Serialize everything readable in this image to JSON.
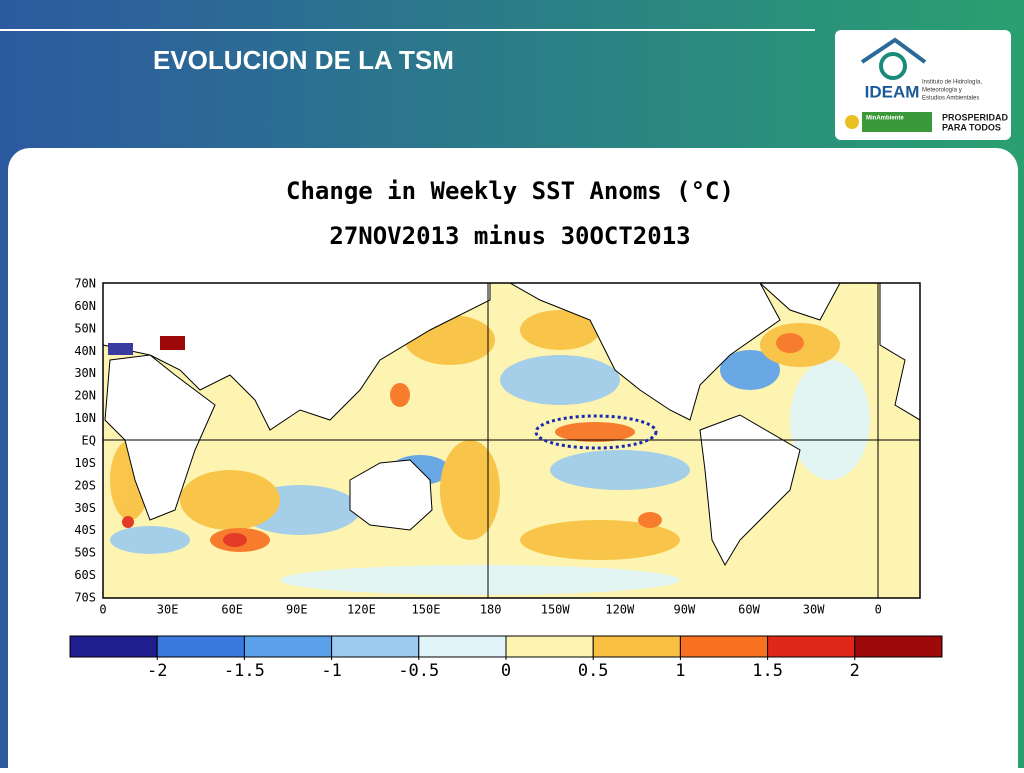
{
  "slide": {
    "title": "EVOLUCION DE LA TSM"
  },
  "logo": {
    "name": "IDEAM",
    "institute": [
      "Instituto de Hidrología,",
      "Meteorología y",
      "Estudios Ambientales"
    ],
    "ministry": "MinAmbiente",
    "slogan": [
      "PROSPERIDAD",
      "PARA TODOS"
    ]
  },
  "map": {
    "title": "Change in Weekly SST Anoms (°C)",
    "subtitle": "27NOV2013 minus 30OCT2013",
    "lat_labels": [
      "70N",
      "60N",
      "50N",
      "40N",
      "30N",
      "20N",
      "10N",
      "EQ",
      "10S",
      "20S",
      "30S",
      "40S",
      "50S",
      "60S",
      "70S"
    ],
    "lon_labels": [
      "0",
      "30E",
      "60E",
      "90E",
      "120E",
      "150E",
      "180",
      "150W",
      "120W",
      "90W",
      "60W",
      "30W",
      "0"
    ]
  },
  "colorbar": {
    "lim": [
      -2.5,
      2.5
    ],
    "ticks": [
      -2,
      -1.5,
      -1,
      -0.5,
      0,
      0.5,
      1,
      1.5,
      2
    ],
    "colors": [
      "#1e1e8e",
      "#3a7ae0",
      "#5aa0ea",
      "#9ccaf0",
      "#e0f4fa",
      "#fcf4b0",
      "#f8c040",
      "#f87020",
      "#e02818",
      "#9e0a0a"
    ]
  }
}
